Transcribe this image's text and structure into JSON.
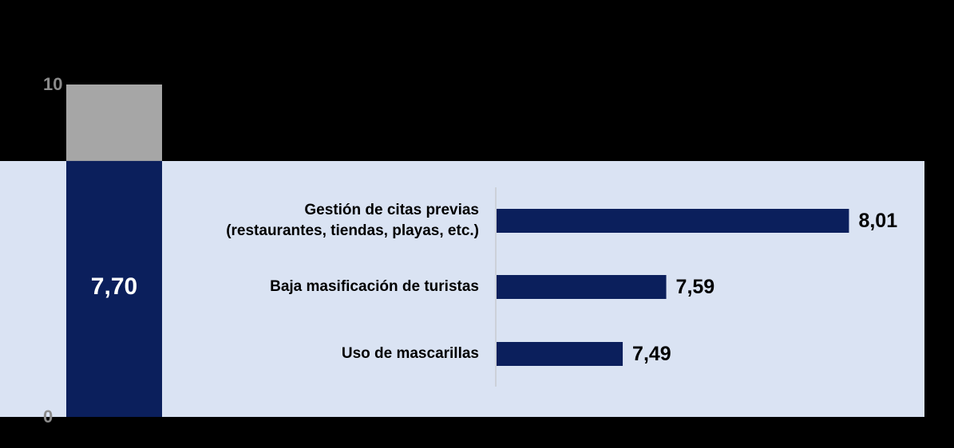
{
  "chart_data": [
    {
      "type": "bar",
      "categories": [
        null
      ],
      "values": [
        7.7
      ],
      "value_labels": [
        "7,70"
      ],
      "ylim": [
        0,
        10
      ],
      "yticks": [
        0,
        10
      ],
      "color": "#0b1f5c",
      "remainder_color": "#a6a6a6"
    },
    {
      "type": "barh",
      "categories": [
        "Gestión de citas previas\n(restaurantes, tiendas, playas, etc.)",
        "Baja masificación de turistas",
        "Uso de mascarillas"
      ],
      "values": [
        8.01,
        7.59,
        7.49
      ],
      "value_labels": [
        "8,01",
        "7,59",
        "7,49"
      ],
      "xlim": [
        7.2,
        8.2
      ],
      "color": "#0b1f5c"
    }
  ]
}
